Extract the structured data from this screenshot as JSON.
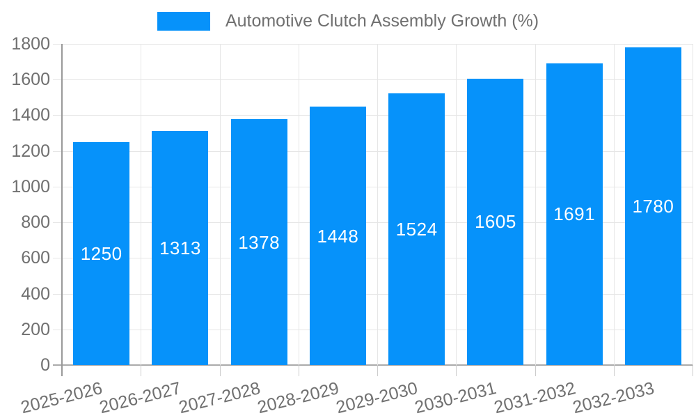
{
  "chart_data": {
    "type": "bar",
    "title": "Automotive Clutch Assembly Growth (%)",
    "legend_position": "top",
    "grid": true,
    "categories": [
      "2025-2026",
      "2026-2027",
      "2027-2028",
      "2028-2029",
      "2029-2030",
      "2030-2031",
      "2031-2032",
      "2032-2033"
    ],
    "values": [
      1250,
      1313,
      1378,
      1448,
      1524,
      1605,
      1691,
      1780
    ],
    "xlabel": "",
    "ylabel": "",
    "ylim": [
      0,
      1800
    ],
    "ytick_step": 200,
    "yticks": [
      0,
      200,
      400,
      600,
      800,
      1000,
      1200,
      1400,
      1600,
      1800
    ],
    "colors": {
      "bar": "#0692fa",
      "grid": "#e6e6e6",
      "axis_line": "#999999",
      "baseline": "#ababab",
      "tick": "#cccccc",
      "label": "#707070",
      "value_label": "#ffffff",
      "background": "#ffffff"
    }
  }
}
